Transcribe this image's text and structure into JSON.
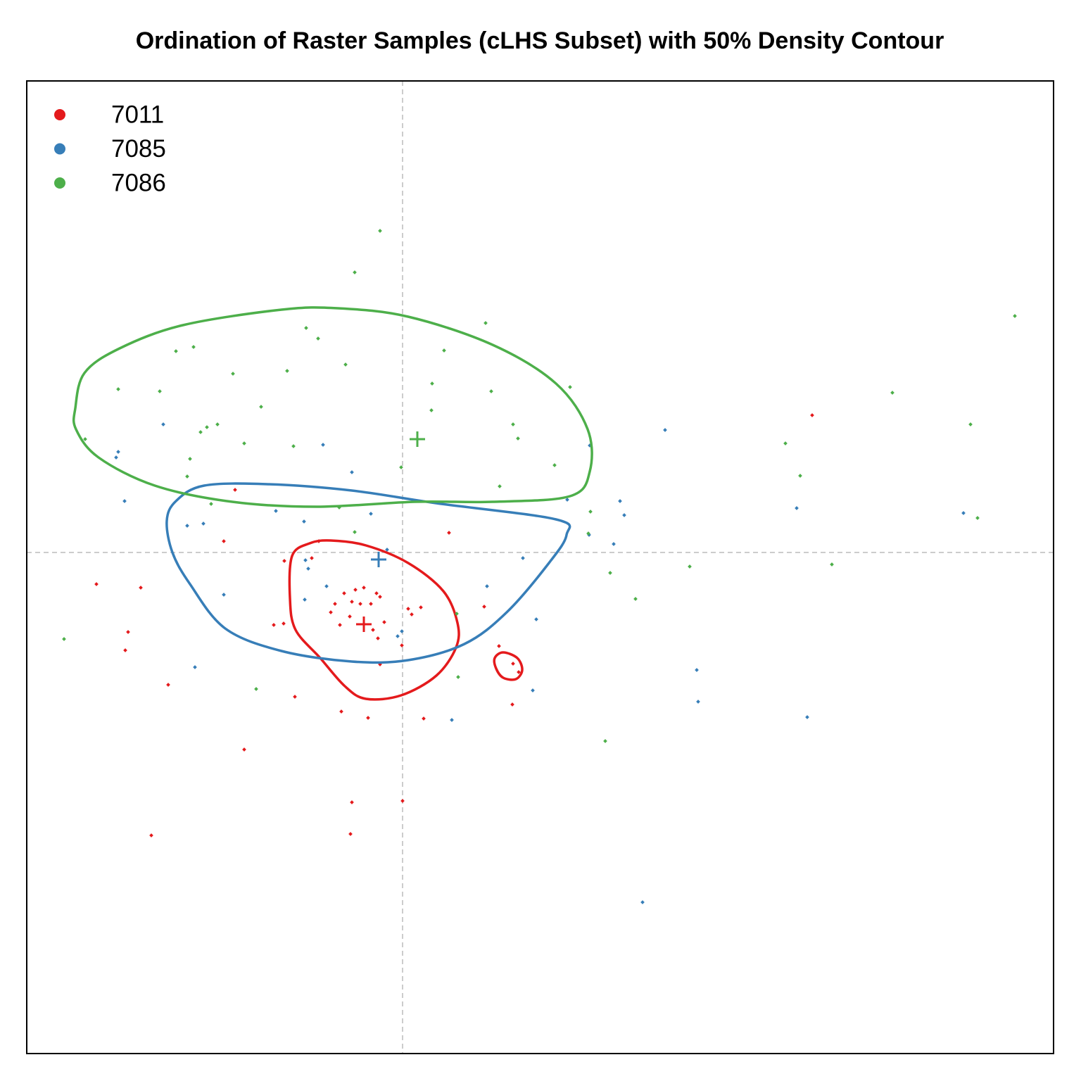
{
  "chart_data": {
    "type": "scatter",
    "title": "Ordination of Raster Samples (cLHS Subset) with 50% Density Contour",
    "xlim": [
      -5.34,
      9.25
    ],
    "ylim": [
      -7.12,
      6.7
    ],
    "hline": 0,
    "vline": 0,
    "legend": "topleft",
    "series": [
      {
        "name": "7011",
        "color": "#e41a1c",
        "x": [
          5.82,
          -2.38,
          0.66,
          -2.54,
          -1.19,
          -1.68,
          -1.29,
          -4.35,
          -3.72,
          -0.67,
          -0.55,
          -0.37,
          -0.32,
          -0.83,
          -0.72,
          -0.6,
          -0.96,
          -0.45,
          0.08,
          0.26,
          1.16,
          -1.02,
          -0.75,
          -0.89,
          -0.26,
          0.13,
          -1.83,
          -1.69,
          -0.42,
          -0.35,
          -3.9,
          -3.94,
          1.37,
          -0.01,
          1.57,
          -0.32,
          1.65,
          -3.33,
          -1.53,
          1.56,
          -0.87,
          -0.49,
          0.3,
          -2.25,
          -0.72,
          0.0,
          -3.57,
          -0.74
        ],
        "y": [
          1.95,
          0.89,
          0.28,
          0.16,
          0.16,
          -0.12,
          -0.08,
          -0.45,
          -0.5,
          -0.53,
          -0.5,
          -0.58,
          -0.63,
          -0.58,
          -0.7,
          -0.73,
          -0.73,
          -0.73,
          -0.8,
          -0.78,
          -0.77,
          -0.85,
          -0.91,
          -1.03,
          -0.99,
          -0.88,
          -1.03,
          -1.01,
          -1.1,
          -1.22,
          -1.13,
          -1.39,
          -1.33,
          -1.32,
          -1.58,
          -1.59,
          -1.7,
          -1.88,
          -2.05,
          -2.16,
          -2.26,
          -2.35,
          -2.36,
          -2.8,
          -3.55,
          -3.53,
          -4.02,
          -4.0
        ],
        "centroid": [
          -0.55,
          -1.02
        ],
        "contours": [
          {
            "x": [
              -1.57,
              -1.32,
              -1.02,
              -0.52,
              0.08,
              0.58,
              0.78,
              0.76,
              0.48,
              -0.02,
              -0.52,
              -0.82,
              -1.17,
              -1.52,
              -1.6
            ],
            "y": [
              -0.05,
              0.13,
              0.17,
              0.1,
              -0.15,
              -0.55,
              -1.0,
              -1.35,
              -1.75,
              -2.03,
              -2.08,
              -1.9,
              -1.5,
              -1.1,
              -0.65
            ]
          },
          {
            "x": [
              1.31,
              1.43,
              1.63,
              1.7,
              1.61,
              1.43,
              1.33
            ],
            "y": [
              -1.5,
              -1.42,
              -1.5,
              -1.67,
              -1.8,
              -1.78,
              -1.65
            ]
          }
        ]
      },
      {
        "name": "7085",
        "color": "#377eb8",
        "x": [
          3.73,
          -3.4,
          -4.04,
          -4.07,
          -1.13,
          2.66,
          -0.72,
          -3.95,
          2.34,
          3.09,
          3.15,
          -1.8,
          5.6,
          7.97,
          -0.45,
          -1.4,
          -2.83,
          -3.06,
          2.65,
          3.0,
          -0.22,
          -1.38,
          -1.34,
          1.71,
          -1.08,
          -2.54,
          -1.39,
          1.2,
          1.9,
          -0.01,
          -0.07,
          -2.95,
          4.18,
          1.85,
          4.2,
          5.75,
          0.7,
          3.41
        ],
        "y": [
          1.74,
          1.82,
          1.43,
          1.35,
          1.53,
          1.52,
          1.14,
          0.73,
          0.75,
          0.73,
          0.53,
          0.59,
          0.63,
          0.56,
          0.55,
          0.44,
          0.41,
          0.38,
          0.25,
          0.12,
          0.04,
          -0.11,
          -0.23,
          -0.08,
          -0.48,
          -0.6,
          -0.67,
          -0.48,
          -0.95,
          -1.12,
          -1.19,
          -1.63,
          -1.67,
          -1.96,
          -2.12,
          -2.34,
          -2.38,
          -4.97
        ],
        "centroid": [
          -0.34,
          -0.1
        ],
        "contours": [
          {
            "x": [
              -3.35,
              -3.22,
              -2.82,
              -1.92,
              -0.72,
              0.48,
              2.18,
              2.33,
              2.08,
              1.48,
              0.88,
              0.08,
              -0.72,
              -1.72,
              -2.52,
              -3.02,
              -3.27
            ],
            "y": [
              0.45,
              0.73,
              0.95,
              0.97,
              0.88,
              0.7,
              0.47,
              0.25,
              -0.15,
              -0.85,
              -1.3,
              -1.53,
              -1.55,
              -1.4,
              -1.08,
              -0.45,
              0.0
            ]
          }
        ]
      },
      {
        "name": "7086",
        "color": "#4daf4a",
        "x": [
          -0.32,
          -0.68,
          8.7,
          1.18,
          -1.37,
          -1.2,
          -2.97,
          -3.22,
          0.59,
          -0.81,
          -1.64,
          -2.41,
          0.42,
          2.38,
          -4.04,
          -3.45,
          1.26,
          6.96,
          -2.01,
          0.41,
          -2.63,
          -2.78,
          -2.87,
          8.07,
          1.57,
          1.64,
          -4.51,
          -2.25,
          5.44,
          -1.55,
          -3.02,
          -0.02,
          2.16,
          5.65,
          -3.06,
          1.38,
          -2.72,
          -0.9,
          2.67,
          8.17,
          -0.68,
          2.64,
          4.08,
          6.1,
          2.95,
          3.31,
          0.77,
          -4.81,
          0.79,
          -2.08,
          2.88
        ],
        "y": [
          4.57,
          3.98,
          3.36,
          3.26,
          3.19,
          3.04,
          2.92,
          2.86,
          2.87,
          2.67,
          2.58,
          2.54,
          2.4,
          2.35,
          2.32,
          2.29,
          2.29,
          2.27,
          2.07,
          2.02,
          1.82,
          1.78,
          1.71,
          1.82,
          1.82,
          1.62,
          1.61,
          1.55,
          1.55,
          1.51,
          1.33,
          1.21,
          1.24,
          1.09,
          1.08,
          0.94,
          0.69,
          0.64,
          0.58,
          0.49,
          0.29,
          0.27,
          -0.2,
          -0.17,
          -0.29,
          -0.66,
          -0.87,
          -1.23,
          -1.77,
          -1.94,
          -2.68
        ],
        "centroid": [
          0.21,
          1.61
        ],
        "contours": [
          {
            "x": [
              -4.65,
              -4.52,
              -4.02,
              -3.12,
              -1.72,
              -0.92,
              0.08,
              1.28,
              2.18,
              2.63,
              2.66,
              2.38,
              1.28,
              0.18,
              -1.22,
              -2.42,
              -3.52,
              -4.32,
              -4.64
            ],
            "y": [
              2.05,
              2.55,
              2.9,
              3.23,
              3.45,
              3.47,
              3.35,
              2.95,
              2.4,
              1.75,
              1.15,
              0.8,
              0.72,
              0.72,
              0.65,
              0.72,
              0.95,
              1.35,
              1.75
            ]
          }
        ]
      }
    ]
  }
}
